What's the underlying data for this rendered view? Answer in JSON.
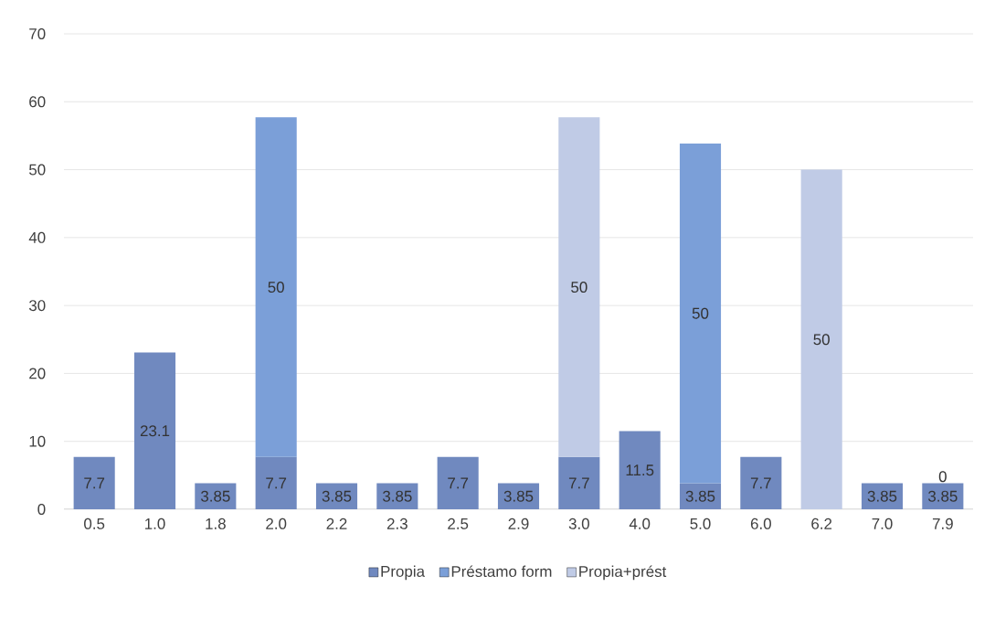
{
  "chart_data": {
    "type": "bar",
    "stacked": true,
    "categories": [
      "0.5",
      "1.0",
      "1.8",
      "2.0",
      "2.2",
      "2.3",
      "2.5",
      "2.9",
      "3.0",
      "4.0",
      "5.0",
      "6.0",
      "6.2",
      "7.0",
      "7.9"
    ],
    "series": [
      {
        "name": "Propia",
        "color": "#7089bf",
        "values": [
          7.7,
          23.1,
          3.85,
          7.7,
          3.85,
          3.85,
          7.7,
          3.85,
          7.7,
          11.5,
          3.85,
          7.7,
          null,
          3.85,
          3.85
        ]
      },
      {
        "name": "Préstamo form",
        "color": "#7b9fd8",
        "values": [
          null,
          null,
          null,
          50,
          null,
          null,
          null,
          null,
          null,
          null,
          50,
          null,
          null,
          null,
          0
        ]
      },
      {
        "name": "Propia+prést",
        "color": "#c0cbe6",
        "values": [
          null,
          null,
          null,
          null,
          null,
          null,
          null,
          null,
          50,
          null,
          null,
          null,
          50,
          null,
          null
        ]
      }
    ],
    "ylim": [
      0,
      70
    ],
    "yticks": [
      0,
      10,
      20,
      30,
      40,
      50,
      60,
      70
    ],
    "grid": "y",
    "legend": "bottom",
    "data_labels": true
  }
}
